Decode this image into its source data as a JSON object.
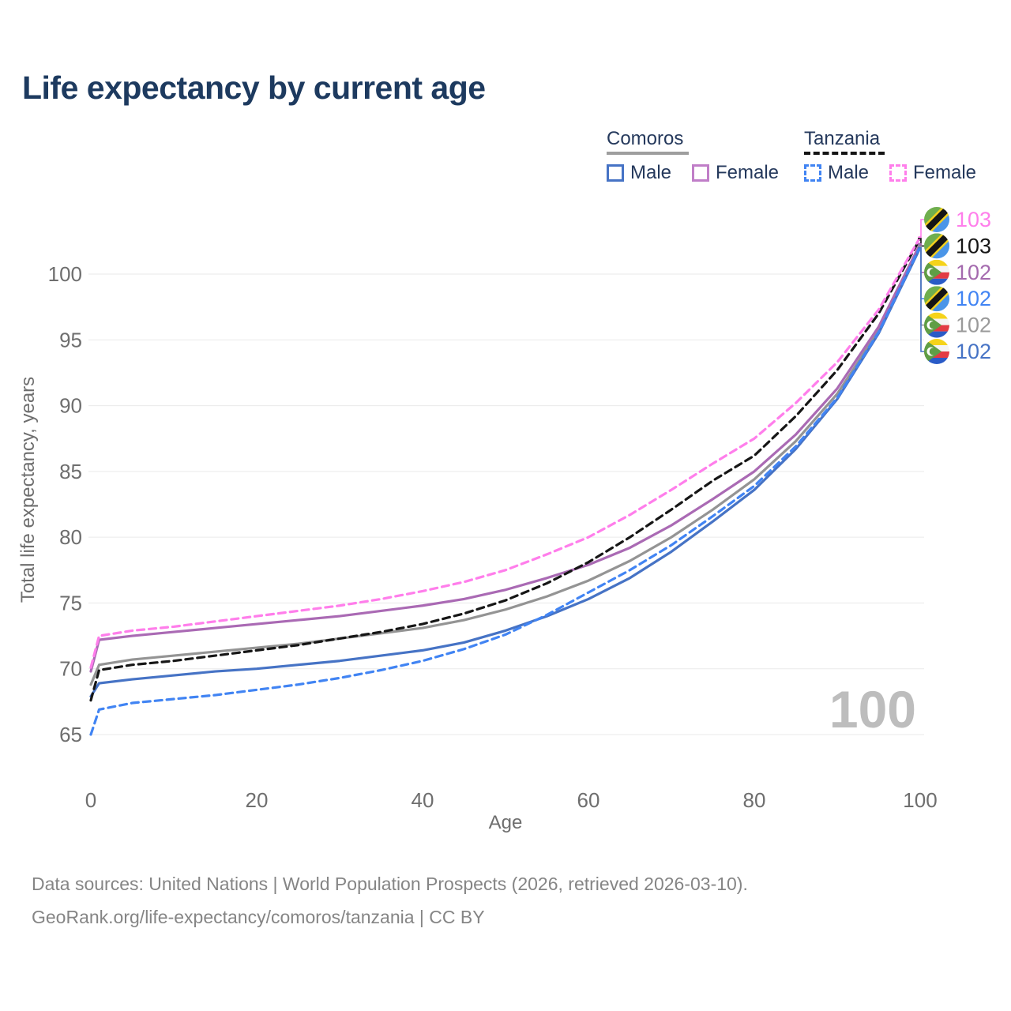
{
  "title": "Life expectancy by current age",
  "watermark": "100",
  "legend": {
    "groups": [
      {
        "label": "Comoros",
        "line_style": "solid",
        "underline_color": "#9e9e9e",
        "items": [
          {
            "label": "Male",
            "color": "#4673c5",
            "dashed": false
          },
          {
            "label": "Female",
            "color": "#c07ec8",
            "dashed": false
          }
        ]
      },
      {
        "label": "Tanzania",
        "line_style": "dashed",
        "underline_color": "#141414",
        "items": [
          {
            "label": "Male",
            "color": "#4184f3",
            "dashed": true
          },
          {
            "label": "Female",
            "color": "#ff7eeb",
            "dashed": true
          }
        ]
      }
    ]
  },
  "footer": {
    "line1": "Data sources: United Nations | World Population Prospects (2026, retrieved 2026-03-10).",
    "line2": "GeoRank.org/life-expectancy/comoros/tanzania | CC BY"
  },
  "chart_data": {
    "type": "line",
    "title": "Life expectancy by current age",
    "xlabel": "Age",
    "ylabel": "Total life expectancy, years",
    "xlim": [
      0,
      100
    ],
    "ylim": [
      63,
      104
    ],
    "grid": true,
    "legend_position": "top-right",
    "xticks": [
      0,
      20,
      40,
      60,
      80,
      100
    ],
    "yticks": [
      65,
      70,
      75,
      80,
      85,
      90,
      95,
      100
    ],
    "x": [
      0,
      1,
      5,
      10,
      15,
      20,
      25,
      30,
      35,
      40,
      45,
      50,
      55,
      60,
      65,
      70,
      75,
      80,
      85,
      90,
      95,
      100
    ],
    "series": [
      {
        "name": "Comoros Male",
        "country": "comoros",
        "sex": "male",
        "line": "solid",
        "color": "#4673c5",
        "values": [
          67.9,
          68.9,
          69.2,
          69.5,
          69.8,
          70.0,
          70.3,
          70.6,
          71.0,
          71.4,
          72.0,
          72.9,
          74.0,
          75.3,
          76.9,
          78.9,
          81.2,
          83.6,
          86.7,
          90.5,
          95.5,
          102.0
        ]
      },
      {
        "name": "Comoros Female",
        "country": "comoros",
        "sex": "female",
        "line": "solid",
        "color": "#aa6ab4",
        "values": [
          69.8,
          72.2,
          72.5,
          72.8,
          73.1,
          73.4,
          73.7,
          74.0,
          74.4,
          74.8,
          75.3,
          76.0,
          76.9,
          77.9,
          79.2,
          80.9,
          82.9,
          85.0,
          87.8,
          91.3,
          96.0,
          102.3
        ]
      },
      {
        "name": "Comoros Both sexes",
        "country": "comoros",
        "sex": "both",
        "line": "solid",
        "color": "#949494",
        "values": [
          68.8,
          70.3,
          70.7,
          71.0,
          71.3,
          71.6,
          71.9,
          72.3,
          72.7,
          73.1,
          73.7,
          74.5,
          75.5,
          76.7,
          78.2,
          80.0,
          82.1,
          84.4,
          87.3,
          90.9,
          95.7,
          102.1
        ]
      },
      {
        "name": "Tanzania Male",
        "country": "tanzania",
        "sex": "male",
        "line": "dashed",
        "color": "#4184f3",
        "values": [
          65.0,
          66.9,
          67.4,
          67.7,
          68.0,
          68.4,
          68.8,
          69.3,
          69.9,
          70.6,
          71.5,
          72.6,
          74.1,
          75.8,
          77.5,
          79.4,
          81.6,
          83.9,
          86.9,
          90.6,
          95.6,
          102.1
        ]
      },
      {
        "name": "Tanzania Female",
        "country": "tanzania",
        "sex": "female",
        "line": "dashed",
        "color": "#ff7eeb",
        "values": [
          70.1,
          72.5,
          72.9,
          73.2,
          73.6,
          74.0,
          74.4,
          74.8,
          75.3,
          75.9,
          76.6,
          77.5,
          78.7,
          80.0,
          81.7,
          83.6,
          85.6,
          87.5,
          90.2,
          93.3,
          97.3,
          102.8
        ]
      },
      {
        "name": "Tanzania Both sexes",
        "country": "tanzania",
        "sex": "both",
        "line": "dashed",
        "color": "#161616",
        "values": [
          67.6,
          69.9,
          70.3,
          70.6,
          71.0,
          71.4,
          71.8,
          72.3,
          72.8,
          73.4,
          74.2,
          75.2,
          76.5,
          78.1,
          80.0,
          82.1,
          84.3,
          86.2,
          89.2,
          92.7,
          97.0,
          102.7
        ]
      }
    ],
    "draw_order": [
      "Comoros Both sexes",
      "Comoros Female",
      "Comoros Male",
      "Tanzania Both sexes",
      "Tanzania Female",
      "Tanzania Male"
    ],
    "end_labels": [
      {
        "series": "Tanzania Female",
        "text": "103",
        "color": "#ff7eeb"
      },
      {
        "series": "Tanzania Both sexes",
        "text": "103",
        "color": "#161616"
      },
      {
        "series": "Comoros Female",
        "text": "102",
        "color": "#a46aae"
      },
      {
        "series": "Tanzania Male",
        "text": "102",
        "color": "#4184f3"
      },
      {
        "series": "Comoros Both sexes",
        "text": "102",
        "color": "#9a9a9a"
      },
      {
        "series": "Comoros Male",
        "text": "102",
        "color": "#4673c5"
      }
    ]
  }
}
